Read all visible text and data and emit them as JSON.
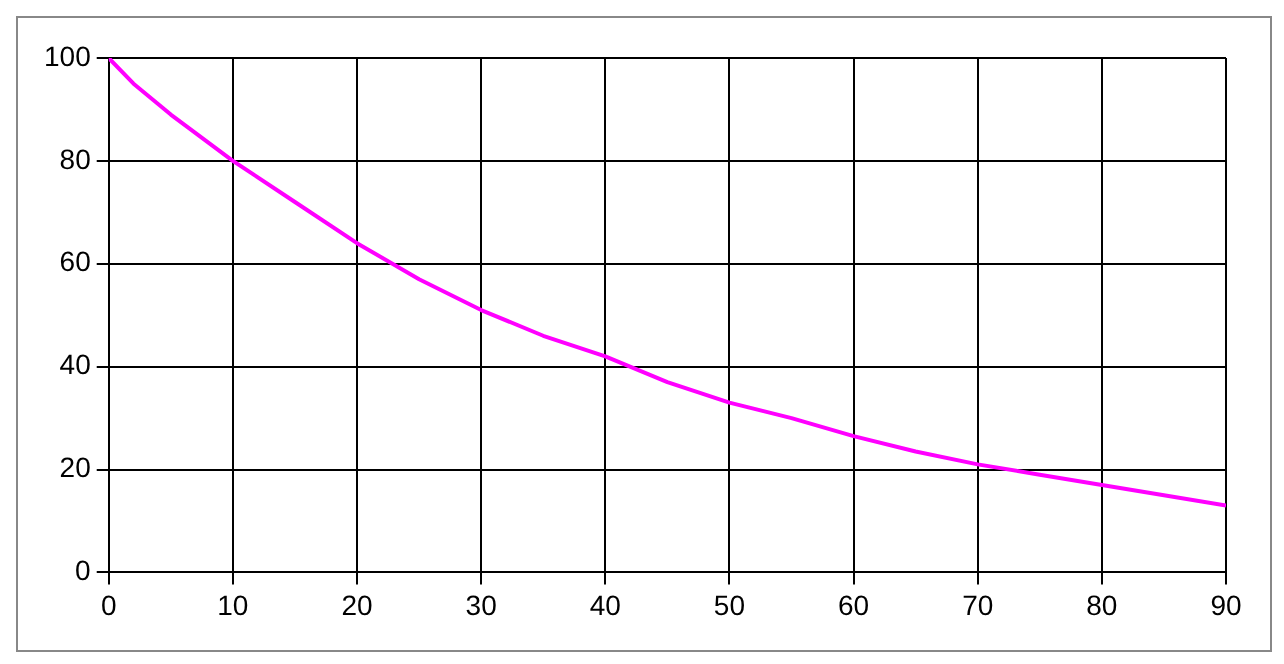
{
  "chart_data": {
    "type": "line",
    "x": [
      0,
      2,
      5,
      10,
      15,
      20,
      25,
      30,
      35,
      40,
      45,
      50,
      55,
      60,
      65,
      70,
      75,
      80,
      85,
      90
    ],
    "series": [
      {
        "color": "#ff00ff",
        "values": [
          100,
          95,
          89,
          80,
          72,
          64,
          57,
          51,
          46,
          42,
          37,
          33,
          30,
          26.5,
          23.5,
          21,
          19,
          17,
          15,
          13
        ]
      }
    ],
    "xlim": [
      0,
      90
    ],
    "xticks": [
      0,
      10,
      20,
      30,
      40,
      50,
      60,
      70,
      80,
      90
    ],
    "ylim": [
      0,
      100
    ],
    "yticks": [
      0,
      20,
      40,
      60,
      80,
      100
    ],
    "grid": true,
    "legend": false,
    "marker": "none",
    "line_style": "solid"
  }
}
